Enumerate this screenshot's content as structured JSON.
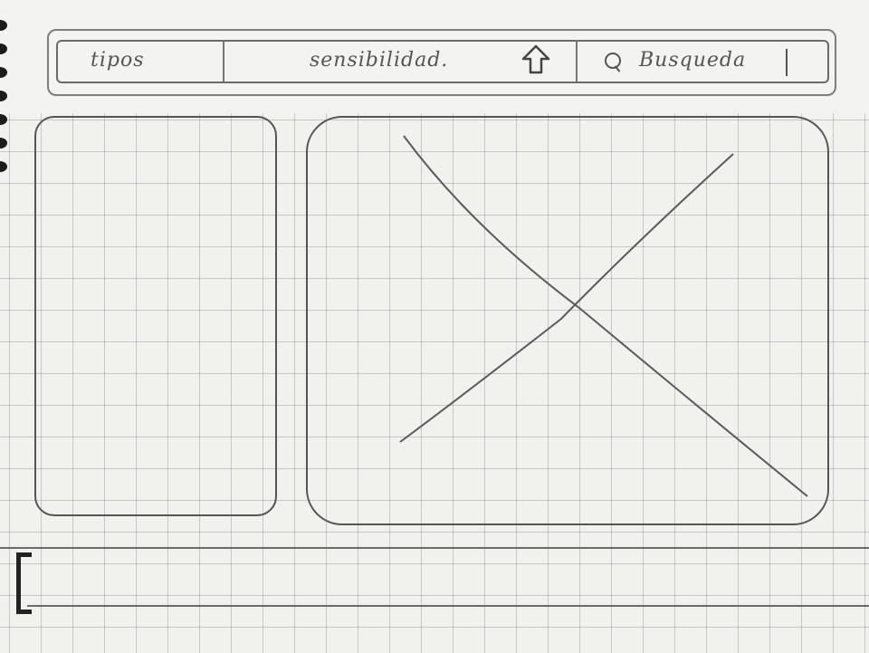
{
  "header": {
    "tab_tipos": "tipos",
    "tab_sensibilidad": "sensibilidad.",
    "search_label": "Busqueda"
  },
  "icons": {
    "upload": "upload-arrow-icon",
    "search": "search-icon"
  },
  "main": {
    "placeholder": "image-placeholder-x"
  },
  "colors": {
    "paper": "#f1f1ee",
    "pencil": "#555555"
  }
}
